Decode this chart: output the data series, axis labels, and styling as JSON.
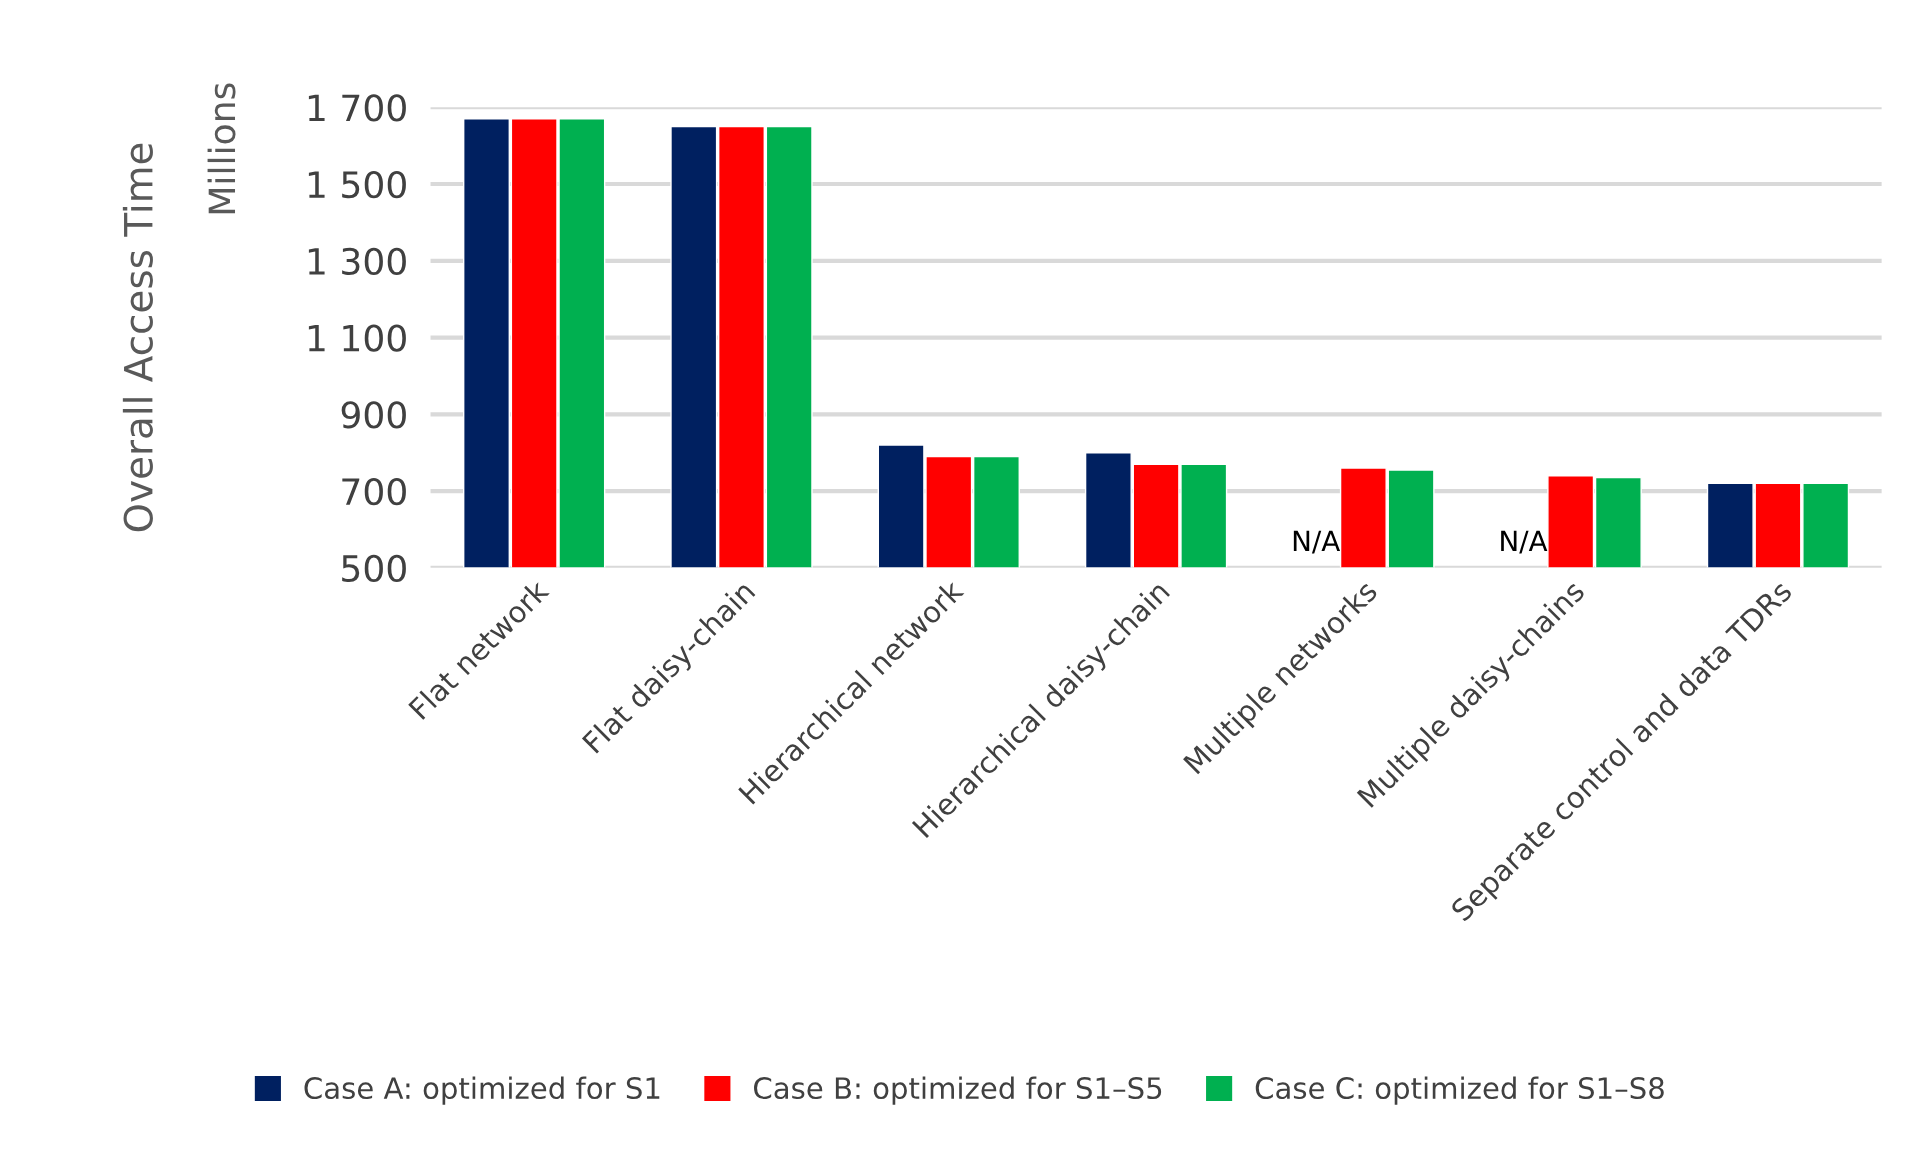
{
  "chart_data": {
    "type": "bar",
    "ylabel": "Overall Access Time",
    "annotations": [
      "Millions",
      {
        "text": "N/A",
        "x": "Multiple networks",
        "y": 500
      },
      {
        "text": "N/A",
        "x": "Multiple daisy-chains",
        "y": 500
      }
    ],
    "categories": [
      "Flat network",
      "Flat daisy-chain",
      "Hierarchical network",
      "Hierarchical daisy-chain",
      "Multiple networks",
      "Multiple daisy-chains",
      "Separate control and data TDRs"
    ],
    "series": [
      {
        "name": "Case A: optimized for S1",
        "color": "#002060",
        "values": [
          1670,
          1650,
          820,
          800,
          null,
          null,
          720
        ]
      },
      {
        "name": "Case B: optimized for S1–S5",
        "color": "#ff0000",
        "values": [
          1670,
          1650,
          790,
          770,
          760,
          740,
          720
        ]
      },
      {
        "name": "Case C: optimized for S1–S8",
        "color": "#00b050",
        "values": [
          1670,
          1650,
          790,
          770,
          755,
          735,
          720
        ]
      }
    ],
    "ylim": [
      500,
      1700
    ],
    "yticks": [
      {
        "value": 500,
        "label": "500"
      },
      {
        "value": 700,
        "label": "700"
      },
      {
        "value": 900,
        "label": "900"
      },
      {
        "value": 1100,
        "label": "1 100"
      },
      {
        "value": 1300,
        "label": "1 300"
      },
      {
        "value": 1500,
        "label": "1 500"
      },
      {
        "value": 1700,
        "label": "1 700"
      }
    ],
    "grid": "y",
    "legend": "bottom"
  }
}
